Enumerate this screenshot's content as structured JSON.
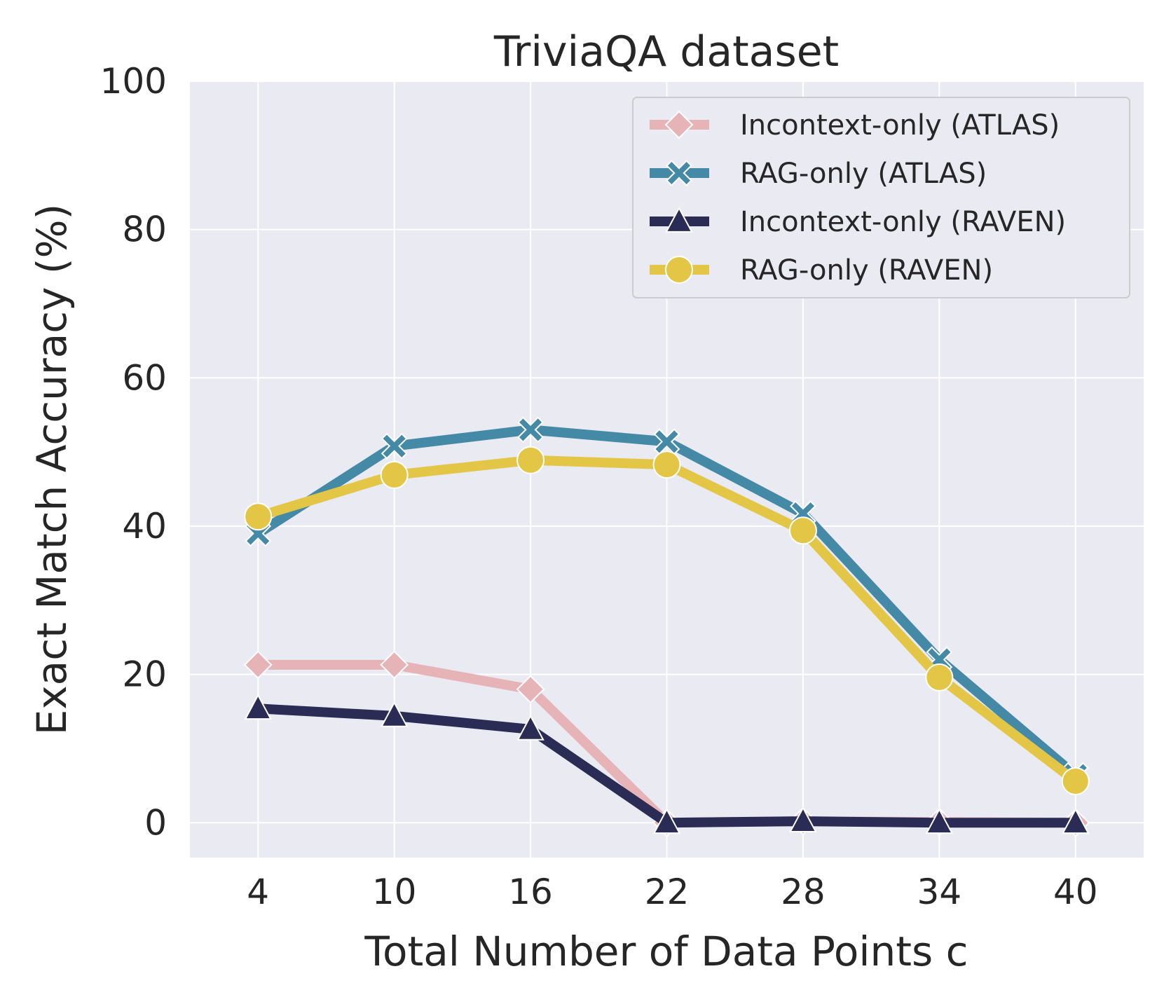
{
  "chart_data": {
    "type": "line",
    "title": "TriviaQA dataset",
    "xlabel": "Total Number of Data Points c",
    "ylabel": "Exact Match Accuracy (%)",
    "x": [
      4,
      10,
      16,
      22,
      28,
      34,
      40
    ],
    "xticks": [
      "4",
      "10",
      "16",
      "22",
      "28",
      "34",
      "40"
    ],
    "yticks": [
      "0",
      "20",
      "40",
      "60",
      "80",
      "100"
    ],
    "ylim": [
      -4.7,
      100
    ],
    "grid": true,
    "legend_position": "top-right",
    "series": [
      {
        "name": "Incontext-only (ATLAS)",
        "marker": "diamond",
        "color": "#e6b3b7",
        "values": [
          21.3,
          21.3,
          18.0,
          0.0,
          0.2,
          0.1,
          0.0
        ]
      },
      {
        "name": "RAG-only (ATLAS)",
        "marker": "x",
        "color": "#448aa6",
        "values": [
          39.0,
          50.8,
          53.0,
          51.4,
          41.7,
          22.0,
          6.4
        ]
      },
      {
        "name": "Incontext-only (RAVEN)",
        "marker": "triangle",
        "color": "#2a2c55",
        "values": [
          15.4,
          14.4,
          12.6,
          0.0,
          0.2,
          0.0,
          0.0
        ]
      },
      {
        "name": "RAG-only (RAVEN)",
        "marker": "circle",
        "color": "#e3c645",
        "values": [
          41.3,
          46.9,
          48.9,
          48.3,
          39.4,
          19.6,
          5.6
        ]
      }
    ]
  }
}
